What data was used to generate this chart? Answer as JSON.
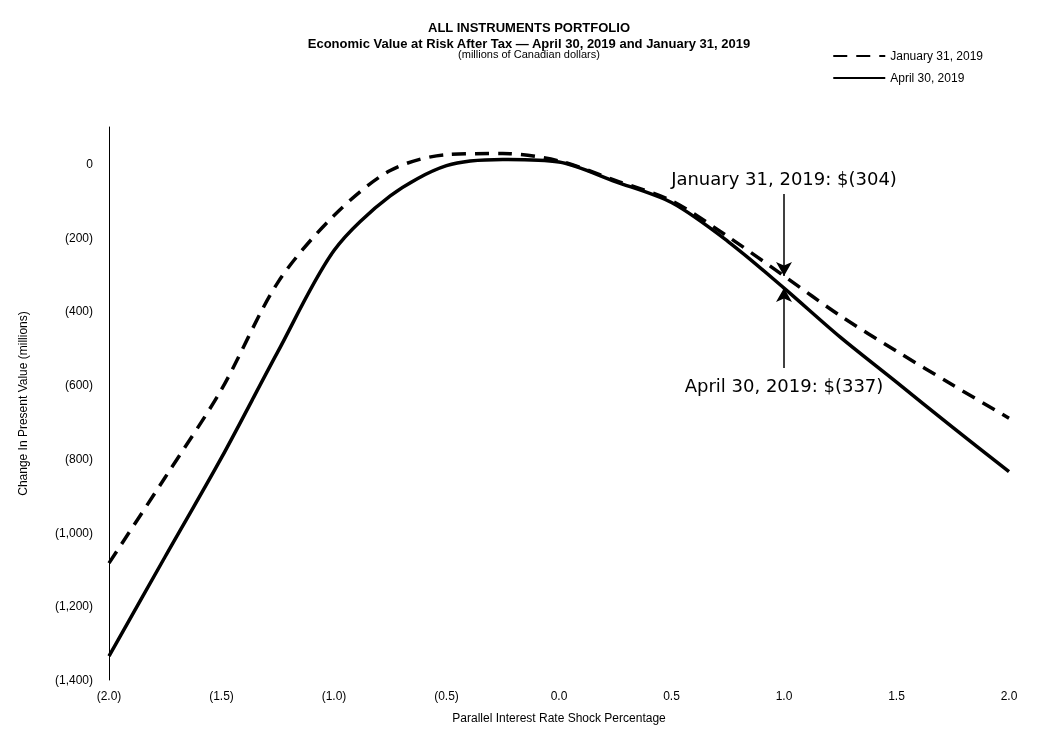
{
  "chart_data": {
    "type": "line",
    "title": "ALL INSTRUMENTS PORTFOLIO",
    "subtitle": "Economic Value at Risk After Tax — April 30, 2019 and January 31, 2019",
    "xlabel": "Parallel Interest Rate Shock Percentage",
    "ylabel": "Change In Present Value (millions)",
    "x": [
      -2,
      -1.75,
      -1.5,
      -1.25,
      -1,
      -0.75,
      -0.5,
      -0.25,
      0,
      0.25,
      0.5,
      0.75,
      1,
      1.25,
      1.5,
      1.75,
      2
    ],
    "series": [
      {
        "name": "January 31, 2019",
        "color": "#000000",
        "line_style": "dashed",
        "values": [
          -1083,
          -850,
          -612,
          -322,
          -140,
          -18,
          25,
          28,
          8,
          -45,
          -100,
          -197,
          -304,
          -412,
          -508,
          -600,
          -690
        ]
      },
      {
        "name": "April 30, 2019",
        "color": "#000000",
        "line_style": "solid",
        "values": [
          -1335,
          -1065,
          -797,
          -510,
          -235,
          -87,
          -5,
          12,
          5,
          -48,
          -105,
          -210,
          -337,
          -470,
          -592,
          -715,
          -835
        ]
      }
    ],
    "xlim": [
      -2,
      2
    ],
    "xticks": [
      {
        "value": -2,
        "label": "(2.0)"
      },
      {
        "value": -1.5,
        "label": "(1.5)"
      },
      {
        "value": -1,
        "label": "(1.0)"
      },
      {
        "value": -0.5,
        "label": "(0.5)"
      },
      {
        "value": 0,
        "label": "0.0"
      },
      {
        "value": 0.5,
        "label": "0.5"
      },
      {
        "value": 1,
        "label": "1.0"
      },
      {
        "value": 1.5,
        "label": "1.5"
      },
      {
        "value": 2,
        "label": "2.0"
      }
    ],
    "ylim": [
      -1400,
      100
    ],
    "yticks": [
      0,
      {
        "value": -200,
        "label": "(200)"
      },
      {
        "value": -400,
        "label": "(400)"
      },
      {
        "value": -600,
        "label": "(600)"
      },
      {
        "value": -800,
        "label": "(800)"
      },
      {
        "value": -1000,
        "label": "(1,000)"
      },
      {
        "value": -1200,
        "label": "(1,200)"
      },
      {
        "value": -1400,
        "label": "(1,400)"
      }
    ],
    "annotations": [
      "(millions of Canadian dollars)",
      {
        "text": "January 31, 2019: $(304)",
        "x": 1,
        "y": -304
      },
      {
        "text": "April 30, 2019: $(337)",
        "x": 1,
        "y": -337
      }
    ],
    "grid": false,
    "legend": "top right",
    "marker": "none"
  }
}
